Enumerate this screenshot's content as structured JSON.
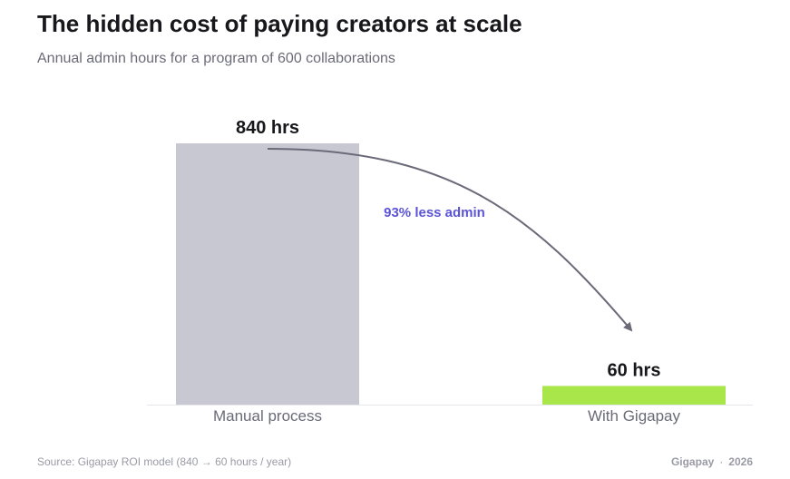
{
  "header": {
    "title": "The hidden cost of paying creators at scale",
    "subtitle": "Annual admin hours for a program of 600 collaborations"
  },
  "footer": {
    "source": "Source: Gigapay ROI model (840 → 60 hours / year)",
    "brand": "Gigapay",
    "separator": "·",
    "year": "2026"
  },
  "chart_data": {
    "type": "bar",
    "title": "The hidden cost of paying creators at scale",
    "subtitle": "Annual admin hours for a program of 600 collaborations",
    "categories": [
      "Manual process",
      "With Gigapay"
    ],
    "values": [
      840,
      60
    ],
    "value_labels": [
      "840 hrs",
      "60 hrs"
    ],
    "colors": [
      "#c8c8d2",
      "#a8e64a"
    ],
    "ylim": [
      0,
      840
    ],
    "grid": false,
    "annotation": {
      "text": "93% less admin",
      "from": "Manual process",
      "to": "With Gigapay",
      "color": "#5b54d6"
    }
  }
}
